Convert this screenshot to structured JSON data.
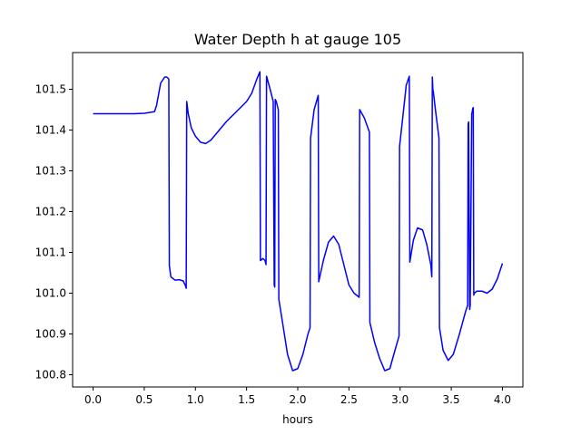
{
  "chart_data": {
    "type": "line",
    "title": "Water Depth h at gauge 105",
    "xlabel": "hours",
    "ylabel": "",
    "xlim": [
      -0.2,
      4.2
    ],
    "ylim": [
      100.77,
      101.59
    ],
    "xticks": [
      0.0,
      0.5,
      1.0,
      1.5,
      2.0,
      2.5,
      3.0,
      3.5,
      4.0
    ],
    "xtick_labels": [
      "0.0",
      "0.5",
      "1.0",
      "1.5",
      "2.0",
      "2.5",
      "3.0",
      "3.5",
      "4.0"
    ],
    "yticks": [
      100.8,
      100.9,
      101.0,
      101.1,
      101.2,
      101.3,
      101.4,
      101.5
    ],
    "ytick_labels": [
      "100.8",
      "100.9",
      "101.0",
      "101.1",
      "101.2",
      "101.3",
      "101.4",
      "101.5"
    ],
    "grid": false,
    "series": [
      {
        "color": "#0000ff",
        "x": [
          0.0,
          0.1,
          0.2,
          0.3,
          0.4,
          0.5,
          0.6,
          0.62,
          0.66,
          0.7,
          0.72,
          0.74,
          0.745,
          0.76,
          0.8,
          0.84,
          0.88,
          0.9,
          0.91,
          0.915,
          0.93,
          0.96,
          1.0,
          1.05,
          1.1,
          1.15,
          1.2,
          1.3,
          1.4,
          1.5,
          1.55,
          1.6,
          1.63,
          1.635,
          1.66,
          1.68,
          1.69,
          1.695,
          1.73,
          1.76,
          1.77,
          1.775,
          1.78,
          1.79,
          1.8,
          1.81,
          1.815,
          1.85,
          1.9,
          1.95,
          2.0,
          2.05,
          2.1,
          2.12,
          2.125,
          2.16,
          2.2,
          2.205,
          2.25,
          2.3,
          2.35,
          2.4,
          2.45,
          2.5,
          2.55,
          2.6,
          2.605,
          2.65,
          2.7,
          2.705,
          2.75,
          2.8,
          2.85,
          2.9,
          2.95,
          2.99,
          2.995,
          3.03,
          3.06,
          3.09,
          3.095,
          3.13,
          3.17,
          3.22,
          3.26,
          3.3,
          3.31,
          3.315,
          3.32,
          3.325,
          3.35,
          3.38,
          3.385,
          3.42,
          3.47,
          3.52,
          3.58,
          3.64,
          3.66,
          3.665,
          3.67,
          3.68,
          3.685,
          3.7,
          3.705,
          3.71,
          3.715,
          3.72,
          3.725,
          3.75,
          3.8,
          3.85,
          3.9,
          3.95,
          4.0
        ],
        "y": [
          101.44,
          101.44,
          101.44,
          101.44,
          101.44,
          101.441,
          101.445,
          101.46,
          101.515,
          101.53,
          101.53,
          101.525,
          101.068,
          101.04,
          101.032,
          101.033,
          101.03,
          101.02,
          101.012,
          101.47,
          101.44,
          101.405,
          101.385,
          101.37,
          101.367,
          101.375,
          101.39,
          101.42,
          101.445,
          101.47,
          101.49,
          101.525,
          101.543,
          101.08,
          101.085,
          101.08,
          101.07,
          101.532,
          101.5,
          101.47,
          101.02,
          101.015,
          101.475,
          101.47,
          101.46,
          101.45,
          100.985,
          100.93,
          100.85,
          100.81,
          100.815,
          100.85,
          100.9,
          100.915,
          101.38,
          101.45,
          101.485,
          101.028,
          101.08,
          101.125,
          101.14,
          101.12,
          101.07,
          101.02,
          101.0,
          100.99,
          101.45,
          101.43,
          101.395,
          100.928,
          100.88,
          100.84,
          100.81,
          100.815,
          100.86,
          100.895,
          101.36,
          101.44,
          101.51,
          101.532,
          101.076,
          101.13,
          101.16,
          101.155,
          101.12,
          101.07,
          101.04,
          101.53,
          101.5,
          101.493,
          101.44,
          101.38,
          100.915,
          100.86,
          100.835,
          100.85,
          100.9,
          100.955,
          100.97,
          101.415,
          101.42,
          100.96,
          100.97,
          101.44,
          101.445,
          101.453,
          101.455,
          100.995,
          101.0,
          101.005,
          101.005,
          101.0,
          101.01,
          101.035,
          101.073
        ]
      }
    ]
  }
}
